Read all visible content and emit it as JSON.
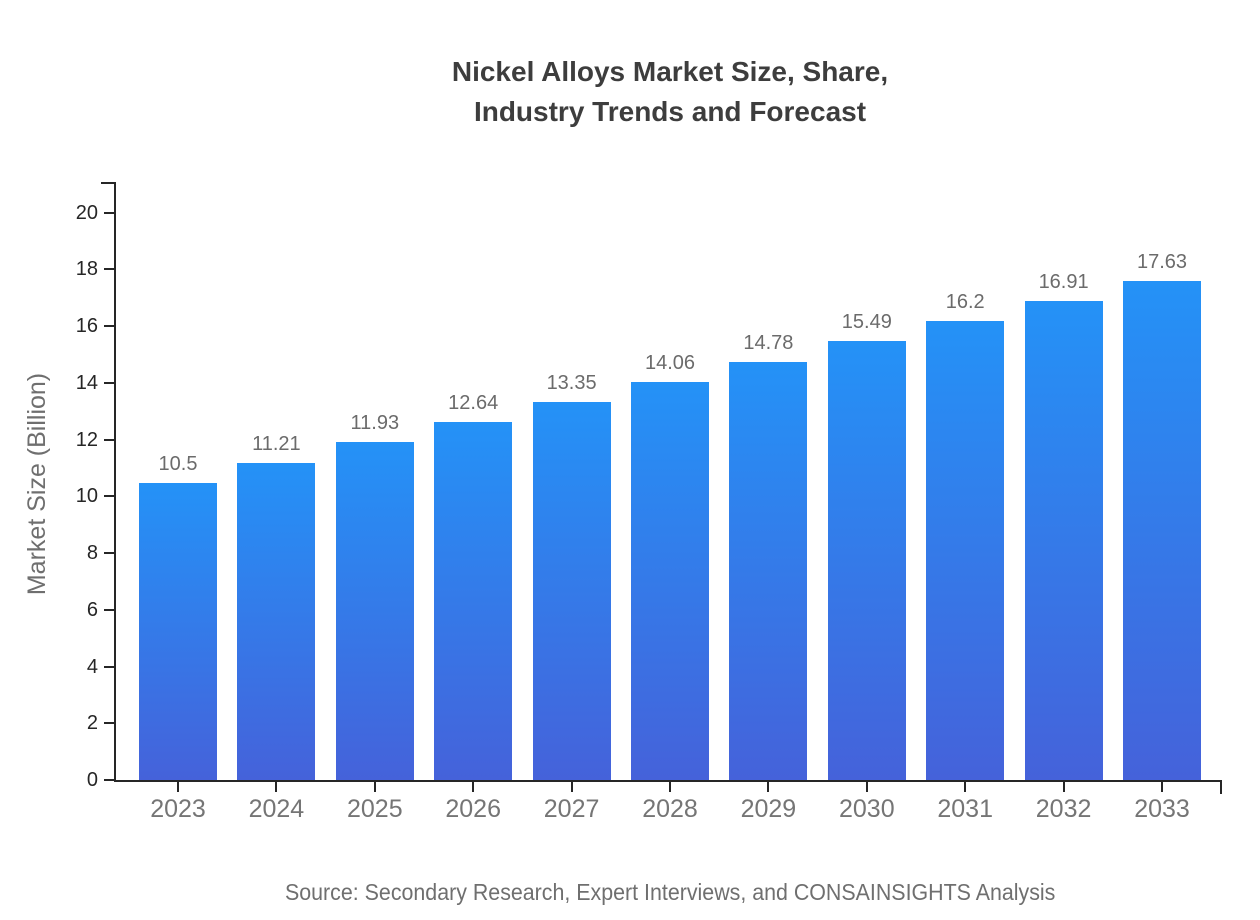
{
  "title": "Nickel Alloys Market Size, Share,\nIndustry Trends and Forecast",
  "source": "Source: Secondary Research, Expert Interviews, and CONSAINSIGHTS Analysis",
  "chart_data": {
    "type": "bar",
    "title": "Nickel Alloys Market Size, Share, Industry Trends and Forecast",
    "categories": [
      "2023",
      "2024",
      "2025",
      "2026",
      "2027",
      "2028",
      "2029",
      "2030",
      "2031",
      "2032",
      "2033"
    ],
    "values": [
      10.5,
      11.21,
      11.93,
      12.64,
      13.35,
      14.06,
      14.78,
      15.49,
      16.2,
      16.91,
      17.63
    ],
    "value_labels": [
      "10.5",
      "11.21",
      "11.93",
      "12.64",
      "13.35",
      "14.06",
      "14.78",
      "15.49",
      "16.2",
      "16.91",
      "17.63"
    ],
    "xlabel": "",
    "ylabel": "Market Size (Billion)",
    "ylim": [
      0,
      21
    ],
    "yticks": [
      0,
      2,
      4,
      6,
      8,
      10,
      12,
      14,
      16,
      18,
      20
    ],
    "grid": false,
    "legend_position": "none",
    "colors": {
      "bar_gradient_top": "#2492F7",
      "bar_gradient_bottom": "#4562DA",
      "axis": "#262626",
      "y_tick_label": "#262626",
      "x_tick_label": "#757575",
      "value_label": "#6b6b6b",
      "title_text": "#3d3d3d",
      "source_text": "#6f6f6f"
    }
  }
}
